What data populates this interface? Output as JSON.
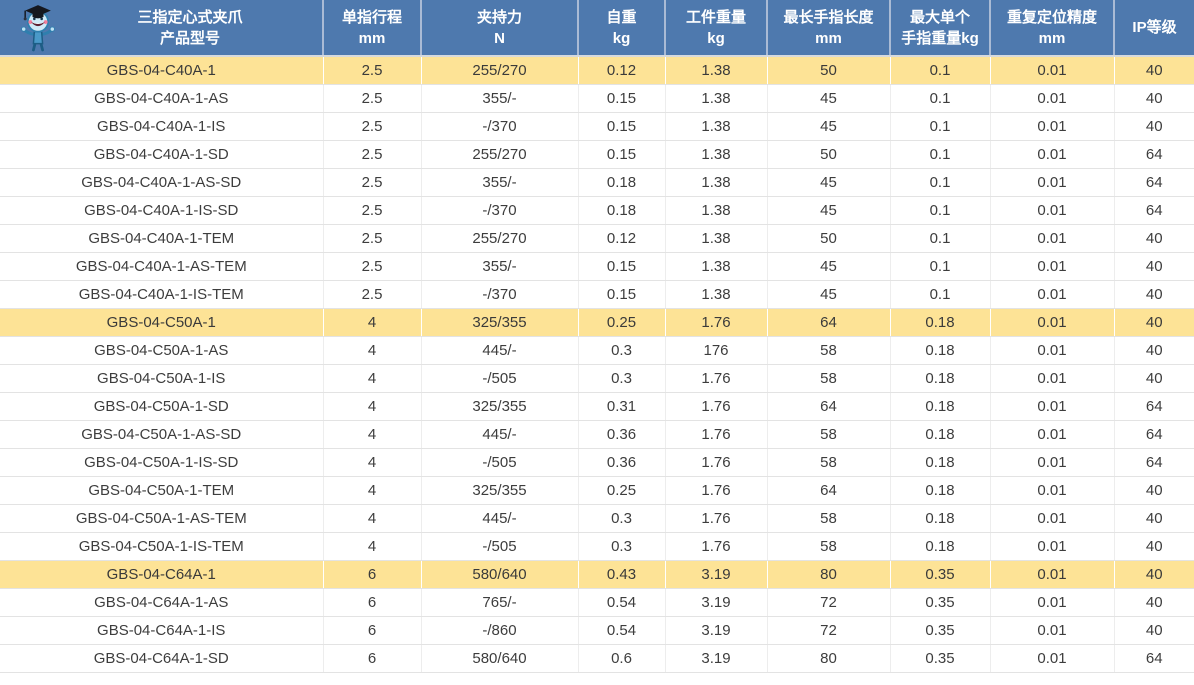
{
  "colors": {
    "header_bg": "#4e79ae",
    "header_text": "#ffffff",
    "highlight_row_bg": "#fde396",
    "body_text": "#3d3d3d"
  },
  "icons": {
    "mascot": "mascot-graduate-robot-icon"
  },
  "table": {
    "columns": [
      {
        "key": "product_model",
        "line1": "三指定心式夹爪",
        "line2": "产品型号"
      },
      {
        "key": "stroke_mm",
        "line1": "单指行程",
        "line2": "mm"
      },
      {
        "key": "grip_force_n",
        "line1": "夹持力",
        "line2": "N"
      },
      {
        "key": "self_weight_kg",
        "line1": "自重",
        "line2": "kg"
      },
      {
        "key": "workpiece_weight_kg",
        "line1": "工件重量",
        "line2": "kg"
      },
      {
        "key": "max_finger_length_mm",
        "line1": "最长手指长度",
        "line2": "mm"
      },
      {
        "key": "max_finger_weight_kg",
        "line1": "最大单个",
        "line2": "手指重量kg"
      },
      {
        "key": "repeatability_mm",
        "line1": "重复定位精度",
        "line2": "mm"
      },
      {
        "key": "ip_rating",
        "line1": "IP等级",
        "line2": ""
      }
    ],
    "rows": [
      {
        "highlight": true,
        "cells": [
          "GBS-04-C40A-1",
          "2.5",
          "255/270",
          "0.12",
          "1.38",
          "50",
          "0.1",
          "0.01",
          "40"
        ]
      },
      {
        "highlight": false,
        "cells": [
          "GBS-04-C40A-1-AS",
          "2.5",
          "355/-",
          "0.15",
          "1.38",
          "45",
          "0.1",
          "0.01",
          "40"
        ]
      },
      {
        "highlight": false,
        "cells": [
          "GBS-04-C40A-1-IS",
          "2.5",
          "-/370",
          "0.15",
          "1.38",
          "45",
          "0.1",
          "0.01",
          "40"
        ]
      },
      {
        "highlight": false,
        "cells": [
          "GBS-04-C40A-1-SD",
          "2.5",
          "255/270",
          "0.15",
          "1.38",
          "50",
          "0.1",
          "0.01",
          "64"
        ]
      },
      {
        "highlight": false,
        "cells": [
          "GBS-04-C40A-1-AS-SD",
          "2.5",
          "355/-",
          "0.18",
          "1.38",
          "45",
          "0.1",
          "0.01",
          "64"
        ]
      },
      {
        "highlight": false,
        "cells": [
          "GBS-04-C40A-1-IS-SD",
          "2.5",
          "-/370",
          "0.18",
          "1.38",
          "45",
          "0.1",
          "0.01",
          "64"
        ]
      },
      {
        "highlight": false,
        "cells": [
          "GBS-04-C40A-1-TEM",
          "2.5",
          "255/270",
          "0.12",
          "1.38",
          "50",
          "0.1",
          "0.01",
          "40"
        ]
      },
      {
        "highlight": false,
        "cells": [
          "GBS-04-C40A-1-AS-TEM",
          "2.5",
          "355/-",
          "0.15",
          "1.38",
          "45",
          "0.1",
          "0.01",
          "40"
        ]
      },
      {
        "highlight": false,
        "cells": [
          "GBS-04-C40A-1-IS-TEM",
          "2.5",
          "-/370",
          "0.15",
          "1.38",
          "45",
          "0.1",
          "0.01",
          "40"
        ]
      },
      {
        "highlight": true,
        "cells": [
          "GBS-04-C50A-1",
          "4",
          "325/355",
          "0.25",
          "1.76",
          "64",
          "0.18",
          "0.01",
          "40"
        ]
      },
      {
        "highlight": false,
        "cells": [
          "GBS-04-C50A-1-AS",
          "4",
          "445/-",
          "0.3",
          "176",
          "58",
          "0.18",
          "0.01",
          "40"
        ]
      },
      {
        "highlight": false,
        "cells": [
          "GBS-04-C50A-1-IS",
          "4",
          "-/505",
          "0.3",
          "1.76",
          "58",
          "0.18",
          "0.01",
          "40"
        ]
      },
      {
        "highlight": false,
        "cells": [
          "GBS-04-C50A-1-SD",
          "4",
          "325/355",
          "0.31",
          "1.76",
          "64",
          "0.18",
          "0.01",
          "64"
        ]
      },
      {
        "highlight": false,
        "cells": [
          "GBS-04-C50A-1-AS-SD",
          "4",
          "445/-",
          "0.36",
          "1.76",
          "58",
          "0.18",
          "0.01",
          "64"
        ]
      },
      {
        "highlight": false,
        "cells": [
          "GBS-04-C50A-1-IS-SD",
          "4",
          "-/505",
          "0.36",
          "1.76",
          "58",
          "0.18",
          "0.01",
          "64"
        ]
      },
      {
        "highlight": false,
        "cells": [
          "GBS-04-C50A-1-TEM",
          "4",
          "325/355",
          "0.25",
          "1.76",
          "64",
          "0.18",
          "0.01",
          "40"
        ]
      },
      {
        "highlight": false,
        "cells": [
          "GBS-04-C50A-1-AS-TEM",
          "4",
          "445/-",
          "0.3",
          "1.76",
          "58",
          "0.18",
          "0.01",
          "40"
        ]
      },
      {
        "highlight": false,
        "cells": [
          "GBS-04-C50A-1-IS-TEM",
          "4",
          "-/505",
          "0.3",
          "1.76",
          "58",
          "0.18",
          "0.01",
          "40"
        ]
      },
      {
        "highlight": true,
        "cells": [
          "GBS-04-C64A-1",
          "6",
          "580/640",
          "0.43",
          "3.19",
          "80",
          "0.35",
          "0.01",
          "40"
        ]
      },
      {
        "highlight": false,
        "cells": [
          "GBS-04-C64A-1-AS",
          "6",
          "765/-",
          "0.54",
          "3.19",
          "72",
          "0.35",
          "0.01",
          "40"
        ]
      },
      {
        "highlight": false,
        "cells": [
          "GBS-04-C64A-1-IS",
          "6",
          "-/860",
          "0.54",
          "3.19",
          "72",
          "0.35",
          "0.01",
          "40"
        ]
      },
      {
        "highlight": false,
        "cells": [
          "GBS-04-C64A-1-SD",
          "6",
          "580/640",
          "0.6",
          "3.19",
          "80",
          "0.35",
          "0.01",
          "64"
        ]
      }
    ]
  }
}
